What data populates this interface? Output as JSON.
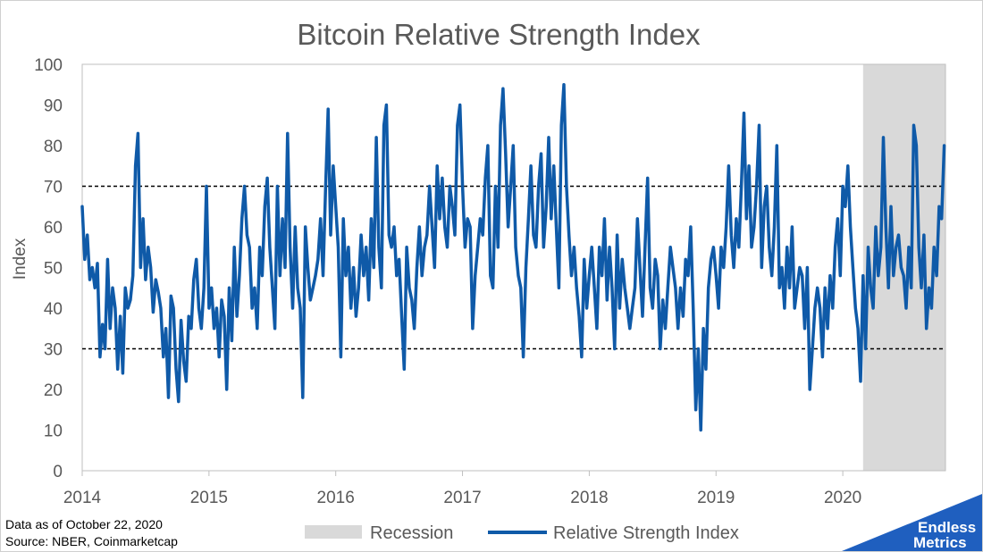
{
  "chart_data": {
    "type": "line",
    "title": "Bitcoin Relative Strength Index",
    "ylabel": "Index",
    "xlabel": "",
    "ylim": [
      0,
      100
    ],
    "xlim": [
      2014.0,
      2020.81
    ],
    "y_ticks": [
      0,
      10,
      20,
      30,
      40,
      50,
      60,
      70,
      80,
      90,
      100
    ],
    "x_ticks": [
      2014,
      2015,
      2016,
      2017,
      2018,
      2019,
      2020
    ],
    "x_tick_labels": [
      "2014",
      "2015",
      "2016",
      "2017",
      "2018",
      "2019",
      "2020"
    ],
    "grid": false,
    "reference_lines": [
      {
        "y": 70,
        "style": "dashed",
        "color": "#000000"
      },
      {
        "y": 30,
        "style": "dashed",
        "color": "#000000"
      }
    ],
    "shaded_regions": [
      {
        "name": "Recession",
        "x_start": 2020.16,
        "x_end": 2020.81,
        "color": "#d9d9d9"
      }
    ],
    "legend_placement": "bottom",
    "legend": [
      "Recession",
      "Relative Strength Index"
    ],
    "series": [
      {
        "name": "Relative Strength Index",
        "color": "#0f5aa8",
        "x": [
          2014.0,
          2014.02,
          2014.04,
          2014.06,
          2014.08,
          2014.1,
          2014.12,
          2014.14,
          2014.16,
          2014.18,
          2014.2,
          2014.22,
          2014.24,
          2014.26,
          2014.28,
          2014.3,
          2014.32,
          2014.34,
          2014.36,
          2014.38,
          2014.4,
          2014.42,
          2014.44,
          2014.46,
          2014.48,
          2014.5,
          2014.52,
          2014.54,
          2014.56,
          2014.58,
          2014.6,
          2014.62,
          2014.64,
          2014.66,
          2014.68,
          2014.7,
          2014.72,
          2014.74,
          2014.76,
          2014.78,
          2014.8,
          2014.82,
          2014.84,
          2014.86,
          2014.88,
          2014.9,
          2014.92,
          2014.94,
          2014.96,
          2014.98,
          2015.0,
          2015.02,
          2015.04,
          2015.06,
          2015.08,
          2015.1,
          2015.12,
          2015.14,
          2015.16,
          2015.18,
          2015.2,
          2015.22,
          2015.24,
          2015.26,
          2015.28,
          2015.3,
          2015.32,
          2015.34,
          2015.36,
          2015.38,
          2015.4,
          2015.42,
          2015.44,
          2015.46,
          2015.48,
          2015.5,
          2015.52,
          2015.54,
          2015.56,
          2015.58,
          2015.6,
          2015.62,
          2015.64,
          2015.66,
          2015.68,
          2015.7,
          2015.72,
          2015.74,
          2015.76,
          2015.78,
          2015.8,
          2015.82,
          2015.84,
          2015.86,
          2015.88,
          2015.9,
          2015.92,
          2015.94,
          2015.96,
          2015.98,
          2016.0,
          2016.02,
          2016.04,
          2016.06,
          2016.08,
          2016.1,
          2016.12,
          2016.14,
          2016.16,
          2016.18,
          2016.2,
          2016.22,
          2016.24,
          2016.26,
          2016.28,
          2016.3,
          2016.32,
          2016.34,
          2016.36,
          2016.38,
          2016.4,
          2016.42,
          2016.44,
          2016.46,
          2016.48,
          2016.5,
          2016.52,
          2016.54,
          2016.56,
          2016.58,
          2016.6,
          2016.62,
          2016.64,
          2016.66,
          2016.68,
          2016.7,
          2016.72,
          2016.74,
          2016.76,
          2016.78,
          2016.8,
          2016.82,
          2016.84,
          2016.86,
          2016.88,
          2016.9,
          2016.92,
          2016.94,
          2016.96,
          2016.98,
          2017.0,
          2017.02,
          2017.04,
          2017.06,
          2017.08,
          2017.1,
          2017.12,
          2017.14,
          2017.16,
          2017.18,
          2017.2,
          2017.22,
          2017.24,
          2017.26,
          2017.28,
          2017.3,
          2017.32,
          2017.34,
          2017.36,
          2017.38,
          2017.4,
          2017.42,
          2017.44,
          2017.46,
          2017.48,
          2017.5,
          2017.52,
          2017.54,
          2017.56,
          2017.58,
          2017.6,
          2017.62,
          2017.64,
          2017.66,
          2017.68,
          2017.7,
          2017.72,
          2017.74,
          2017.76,
          2017.78,
          2017.8,
          2017.82,
          2017.84,
          2017.86,
          2017.88,
          2017.9,
          2017.92,
          2017.94,
          2017.96,
          2017.98,
          2018.0,
          2018.02,
          2018.04,
          2018.06,
          2018.08,
          2018.1,
          2018.12,
          2018.14,
          2018.16,
          2018.18,
          2018.2,
          2018.22,
          2018.24,
          2018.26,
          2018.28,
          2018.3,
          2018.32,
          2018.34,
          2018.36,
          2018.38,
          2018.4,
          2018.42,
          2018.44,
          2018.46,
          2018.48,
          2018.5,
          2018.52,
          2018.54,
          2018.56,
          2018.58,
          2018.6,
          2018.62,
          2018.64,
          2018.66,
          2018.68,
          2018.7,
          2018.72,
          2018.74,
          2018.76,
          2018.78,
          2018.8,
          2018.82,
          2018.84,
          2018.86,
          2018.88,
          2018.9,
          2018.92,
          2018.94,
          2018.96,
          2018.98,
          2019.0,
          2019.02,
          2019.04,
          2019.06,
          2019.08,
          2019.1,
          2019.12,
          2019.14,
          2019.16,
          2019.18,
          2019.2,
          2019.22,
          2019.24,
          2019.26,
          2019.28,
          2019.3,
          2019.32,
          2019.34,
          2019.36,
          2019.38,
          2019.4,
          2019.42,
          2019.44,
          2019.46,
          2019.48,
          2019.5,
          2019.52,
          2019.54,
          2019.56,
          2019.58,
          2019.6,
          2019.62,
          2019.64,
          2019.66,
          2019.68,
          2019.7,
          2019.72,
          2019.74,
          2019.76,
          2019.78,
          2019.8,
          2019.82,
          2019.84,
          2019.86,
          2019.88,
          2019.9,
          2019.92,
          2019.94,
          2019.96,
          2019.98,
          2020.0,
          2020.02,
          2020.04,
          2020.06,
          2020.08,
          2020.1,
          2020.12,
          2020.14,
          2020.16,
          2020.18,
          2020.2,
          2020.22,
          2020.24,
          2020.26,
          2020.28,
          2020.3,
          2020.32,
          2020.34,
          2020.36,
          2020.38,
          2020.4,
          2020.42,
          2020.44,
          2020.46,
          2020.48,
          2020.5,
          2020.52,
          2020.54,
          2020.56,
          2020.58,
          2020.6,
          2020.62,
          2020.64,
          2020.66,
          2020.68,
          2020.7,
          2020.72,
          2020.74,
          2020.76,
          2020.78,
          2020.8
        ],
        "values": [
          65,
          52,
          58,
          47,
          50,
          45,
          51,
          28,
          36,
          30,
          52,
          35,
          45,
          40,
          25,
          38,
          24,
          45,
          40,
          42,
          48,
          75,
          83,
          50,
          62,
          47,
          55,
          50,
          39,
          47,
          44,
          40,
          28,
          35,
          18,
          43,
          40,
          25,
          17,
          37,
          27,
          22,
          38,
          35,
          47,
          52,
          40,
          35,
          45,
          70,
          40,
          45,
          35,
          40,
          28,
          42,
          38,
          20,
          45,
          32,
          55,
          38,
          48,
          62,
          70,
          58,
          55,
          40,
          45,
          35,
          55,
          48,
          65,
          72,
          55,
          45,
          35,
          70,
          48,
          62,
          50,
          83,
          55,
          40,
          60,
          45,
          40,
          18,
          60,
          50,
          42,
          45,
          48,
          52,
          62,
          48,
          70,
          89,
          58,
          75,
          65,
          55,
          28,
          62,
          48,
          55,
          40,
          50,
          38,
          45,
          58,
          48,
          55,
          42,
          62,
          50,
          82,
          55,
          45,
          85,
          90,
          58,
          55,
          60,
          48,
          52,
          38,
          25,
          55,
          45,
          42,
          35,
          50,
          60,
          48,
          55,
          58,
          70,
          60,
          50,
          75,
          62,
          72,
          60,
          55,
          70,
          65,
          58,
          85,
          90,
          70,
          55,
          62,
          60,
          35,
          48,
          55,
          62,
          58,
          72,
          80,
          48,
          45,
          70,
          55,
          85,
          94,
          78,
          60,
          70,
          80,
          55,
          48,
          45,
          28,
          50,
          62,
          75,
          58,
          55,
          70,
          78,
          55,
          65,
          82,
          62,
          75,
          60,
          45,
          85,
          95,
          70,
          58,
          48,
          55,
          45,
          38,
          28,
          52,
          40,
          48,
          55,
          45,
          35,
          55,
          48,
          62,
          42,
          55,
          45,
          30,
          58,
          40,
          52,
          45,
          40,
          35,
          40,
          45,
          62,
          50,
          38,
          55,
          72,
          45,
          40,
          52,
          48,
          30,
          42,
          35,
          45,
          55,
          50,
          45,
          35,
          45,
          38,
          52,
          48,
          60,
          40,
          15,
          30,
          10,
          35,
          25,
          45,
          52,
          55,
          48,
          40,
          55,
          50,
          60,
          75,
          58,
          50,
          62,
          55,
          70,
          88,
          62,
          75,
          55,
          60,
          70,
          85,
          50,
          65,
          70,
          55,
          48,
          60,
          80,
          45,
          50,
          40,
          55,
          45,
          60,
          40,
          45,
          50,
          48,
          35,
          50,
          20,
          30,
          40,
          45,
          40,
          28,
          45,
          35,
          48,
          40,
          55,
          62,
          48,
          70,
          65,
          75,
          60,
          50,
          40,
          35,
          22,
          48,
          30,
          55,
          45,
          40,
          60,
          48,
          55,
          82,
          60,
          45,
          65,
          48,
          55,
          58,
          50,
          48,
          40,
          55,
          45,
          85,
          80,
          55,
          45,
          58,
          35,
          45,
          40,
          55,
          48,
          65,
          62,
          80
        ]
      }
    ],
    "notes": [
      "Data as of October 22, 2020",
      "Source: NBER, Coinmarketcap"
    ],
    "logo_text": [
      "Endless",
      "Metrics"
    ]
  }
}
